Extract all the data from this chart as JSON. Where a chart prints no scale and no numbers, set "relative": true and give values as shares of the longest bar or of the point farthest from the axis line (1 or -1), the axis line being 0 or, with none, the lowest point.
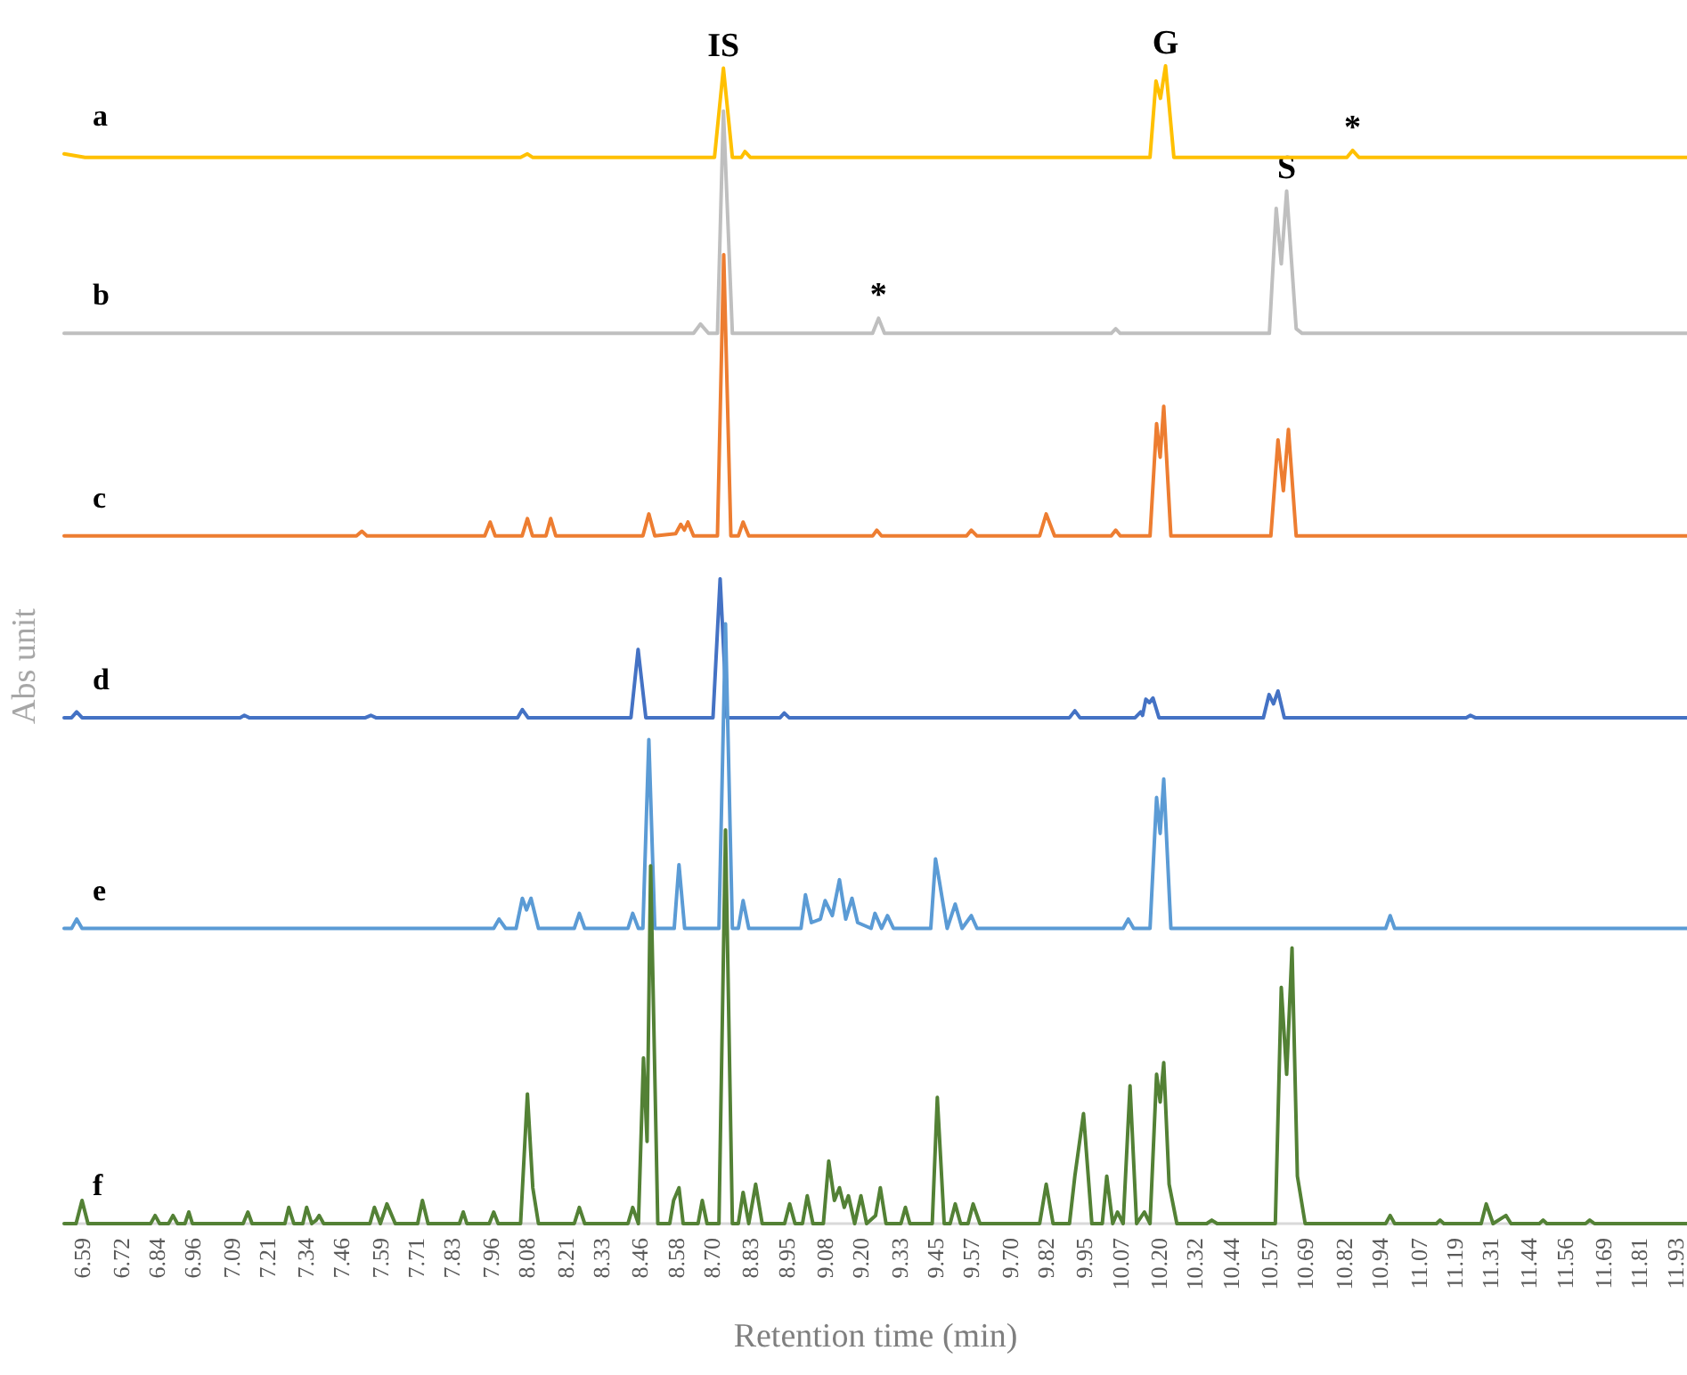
{
  "chart_data": {
    "type": "line",
    "relative": true,
    "xlim": [
      6.53,
      11.97
    ],
    "xlabel": "Retention time (min)",
    "ylabel": "Abs unit",
    "xticks": [
      6.59,
      6.72,
      6.84,
      6.96,
      7.09,
      7.21,
      7.34,
      7.46,
      7.59,
      7.71,
      7.83,
      7.96,
      8.08,
      8.21,
      8.33,
      8.46,
      8.58,
      {
        "value": 8.7,
        "label": "8.70"
      },
      8.83,
      8.95,
      9.08,
      {
        "value": 9.2,
        "label": "9.20"
      },
      9.33,
      9.45,
      9.57,
      {
        "value": 9.7,
        "label": "9.70"
      },
      9.82,
      9.95,
      10.07,
      {
        "value": 10.2,
        "label": "10.20"
      },
      10.32,
      10.44,
      10.57,
      10.69,
      10.82,
      10.94,
      11.07,
      11.19,
      11.31,
      11.44,
      11.56,
      11.69,
      11.81,
      11.93
    ],
    "annotations": [
      {
        "text": "IS",
        "x": 8.74,
        "y": 0.998
      },
      {
        "text": "G",
        "x": 10.222,
        "y": 1.0
      },
      {
        "text": "*",
        "x": 10.849,
        "y": 0.927
      },
      {
        "text": "*",
        "x": 9.26,
        "y": 0.782
      },
      {
        "text": "S",
        "x": 10.628,
        "y": 0.892
      }
    ],
    "series": [
      {
        "name": "a",
        "color": "#ffc000",
        "x": [
          6.53,
          6.6,
          8.06,
          8.083,
          8.1,
          8.71,
          8.74,
          8.77,
          8.8,
          8.812,
          8.83,
          10.17,
          10.19,
          10.205,
          10.222,
          10.25,
          10.83,
          10.849,
          10.87,
          11.97
        ],
        "values": [
          0.924,
          0.921,
          0.921,
          0.924,
          0.921,
          0.921,
          0.998,
          0.921,
          0.921,
          0.926,
          0.921,
          0.921,
          0.987,
          0.972,
          1.0,
          0.921,
          0.921,
          0.927,
          0.921,
          0.921
        ]
      },
      {
        "name": "b",
        "color": "#bfbfbf",
        "x": [
          6.53,
          8.64,
          8.663,
          8.69,
          8.72,
          8.74,
          8.77,
          9.24,
          9.26,
          9.28,
          10.04,
          10.055,
          10.07,
          10.57,
          10.593,
          10.61,
          10.628,
          10.66,
          10.68,
          11.97
        ],
        "values": [
          0.769,
          0.769,
          0.777,
          0.769,
          0.769,
          0.961,
          0.769,
          0.769,
          0.782,
          0.769,
          0.769,
          0.773,
          0.769,
          0.769,
          0.877,
          0.829,
          0.892,
          0.773,
          0.769,
          0.769
        ]
      },
      {
        "name": "c",
        "color": "#ed7d31",
        "x": [
          6.53,
          7.51,
          7.528,
          7.545,
          7.94,
          7.958,
          7.975,
          8.065,
          8.083,
          8.1,
          8.145,
          8.161,
          8.178,
          8.47,
          8.49,
          8.51,
          8.58,
          8.597,
          8.609,
          8.621,
          8.64,
          8.72,
          8.741,
          8.765,
          8.79,
          8.806,
          8.825,
          9.24,
          9.254,
          9.27,
          9.555,
          9.571,
          9.59,
          9.8,
          9.822,
          9.85,
          10.04,
          10.055,
          10.07,
          10.17,
          10.192,
          10.204,
          10.216,
          10.24,
          10.575,
          10.599,
          10.617,
          10.634,
          10.66,
          11.97
        ],
        "values": [
          0.594,
          0.594,
          0.598,
          0.594,
          0.594,
          0.606,
          0.594,
          0.594,
          0.609,
          0.594,
          0.594,
          0.609,
          0.594,
          0.594,
          0.613,
          0.594,
          0.596,
          0.604,
          0.599,
          0.606,
          0.594,
          0.594,
          0.837,
          0.594,
          0.594,
          0.606,
          0.594,
          0.594,
          0.599,
          0.594,
          0.594,
          0.599,
          0.594,
          0.594,
          0.613,
          0.594,
          0.594,
          0.599,
          0.594,
          0.594,
          0.691,
          0.662,
          0.706,
          0.594,
          0.594,
          0.677,
          0.633,
          0.686,
          0.594,
          0.594
        ]
      },
      {
        "name": "d",
        "color": "#4472c4",
        "x": [
          6.53,
          6.555,
          6.572,
          6.59,
          7.12,
          7.134,
          7.15,
          7.54,
          7.558,
          7.575,
          8.05,
          8.066,
          8.085,
          8.43,
          8.454,
          8.48,
          8.705,
          8.729,
          8.752,
          8.93,
          8.944,
          8.96,
          9.9,
          9.918,
          9.935,
          10.12,
          10.139,
          10.145,
          10.156,
          10.168,
          10.18,
          10.2,
          10.55,
          10.569,
          10.584,
          10.599,
          10.62,
          11.23,
          11.244,
          11.26,
          11.97
        ],
        "values": [
          0.437,
          0.437,
          0.442,
          0.437,
          0.437,
          0.439,
          0.437,
          0.437,
          0.439,
          0.437,
          0.437,
          0.444,
          0.437,
          0.437,
          0.496,
          0.437,
          0.437,
          0.557,
          0.437,
          0.437,
          0.441,
          0.437,
          0.437,
          0.443,
          0.437,
          0.437,
          0.442,
          0.439,
          0.453,
          0.45,
          0.454,
          0.437,
          0.437,
          0.457,
          0.449,
          0.46,
          0.437,
          0.437,
          0.439,
          0.437,
          0.437
        ]
      },
      {
        "name": "e",
        "color": "#5b9bd5",
        "x": [
          6.53,
          6.555,
          6.572,
          6.59,
          7.97,
          7.988,
          8.01,
          8.045,
          8.066,
          8.08,
          8.095,
          8.12,
          8.24,
          8.257,
          8.275,
          8.42,
          8.436,
          8.455,
          8.47,
          8.49,
          8.51,
          8.575,
          8.591,
          8.61,
          8.725,
          8.747,
          8.77,
          8.79,
          8.806,
          8.825,
          9.0,
          9.015,
          9.035,
          9.065,
          9.081,
          9.105,
          9.129,
          9.15,
          9.171,
          9.19,
          9.235,
          9.248,
          9.27,
          9.29,
          9.31,
          9.435,
          9.451,
          9.463,
          9.49,
          9.517,
          9.54,
          9.571,
          9.59,
          10.08,
          10.097,
          10.115,
          10.17,
          10.192,
          10.204,
          10.216,
          10.24,
          10.96,
          10.975,
          10.99,
          11.97
        ],
        "values": [
          0.255,
          0.255,
          0.263,
          0.255,
          0.255,
          0.263,
          0.255,
          0.255,
          0.281,
          0.271,
          0.281,
          0.255,
          0.255,
          0.268,
          0.255,
          0.255,
          0.268,
          0.255,
          0.255,
          0.418,
          0.255,
          0.255,
          0.31,
          0.255,
          0.255,
          0.518,
          0.255,
          0.255,
          0.279,
          0.255,
          0.255,
          0.284,
          0.26,
          0.263,
          0.279,
          0.266,
          0.297,
          0.263,
          0.281,
          0.26,
          0.255,
          0.268,
          0.255,
          0.266,
          0.255,
          0.255,
          0.315,
          0.297,
          0.255,
          0.276,
          0.255,
          0.266,
          0.255,
          0.255,
          0.263,
          0.255,
          0.255,
          0.368,
          0.337,
          0.384,
          0.255,
          0.255,
          0.266,
          0.255,
          0.255
        ]
      },
      {
        "name": "f",
        "color": "#538135",
        "x": [
          6.53,
          6.57,
          6.59,
          6.61,
          6.82,
          6.835,
          6.85,
          6.88,
          6.895,
          6.91,
          6.935,
          6.948,
          6.96,
          7.13,
          7.146,
          7.16,
          7.27,
          7.283,
          7.3,
          7.33,
          7.343,
          7.36,
          7.375,
          7.385,
          7.4,
          7.555,
          7.57,
          7.59,
          7.612,
          7.64,
          7.715,
          7.731,
          7.75,
          7.855,
          7.868,
          7.88,
          7.955,
          7.97,
          7.985,
          8.06,
          8.083,
          8.101,
          8.12,
          8.24,
          8.257,
          8.275,
          8.42,
          8.436,
          8.455,
          8.472,
          8.484,
          8.496,
          8.52,
          8.56,
          8.573,
          8.591,
          8.605,
          8.655,
          8.669,
          8.685,
          8.725,
          8.747,
          8.77,
          8.79,
          8.806,
          8.825,
          8.848,
          8.87,
          8.945,
          8.962,
          8.98,
          9.005,
          9.021,
          9.04,
          9.075,
          9.093,
          9.112,
          9.129,
          9.145,
          9.159,
          9.18,
          9.201,
          9.22,
          9.25,
          9.266,
          9.285,
          9.335,
          9.35,
          9.365,
          9.44,
          9.457,
          9.48,
          9.5,
          9.517,
          9.535,
          9.56,
          9.577,
          9.6,
          9.8,
          9.822,
          9.845,
          9.9,
          9.918,
          9.947,
          9.975,
          10.01,
          10.025,
          10.045,
          10.061,
          10.08,
          10.103,
          10.125,
          10.151,
          10.17,
          10.192,
          10.204,
          10.216,
          10.234,
          10.26,
          10.36,
          10.377,
          10.395,
          10.59,
          10.61,
          10.628,
          10.646,
          10.664,
          10.69,
          10.96,
          10.975,
          10.99,
          11.13,
          11.142,
          11.155,
          11.28,
          11.297,
          11.32,
          11.363,
          11.38,
          11.475,
          11.488,
          11.5,
          11.63,
          11.644,
          11.66,
          11.97
        ],
        "values": [
          0,
          0,
          0.02,
          0,
          0,
          0.007,
          0,
          0,
          0.007,
          0,
          0,
          0.01,
          0,
          0,
          0.01,
          0,
          0,
          0.014,
          0,
          0,
          0.014,
          0,
          0.003,
          0.007,
          0,
          0,
          0.014,
          0,
          0.017,
          0,
          0,
          0.02,
          0,
          0,
          0.01,
          0,
          0,
          0.01,
          0,
          0,
          0.112,
          0.031,
          0,
          0,
          0.014,
          0,
          0,
          0.014,
          0,
          0.143,
          0.071,
          0.309,
          0,
          0,
          0.02,
          0.031,
          0,
          0,
          0.02,
          0,
          0,
          0.34,
          0,
          0,
          0.027,
          0,
          0.034,
          0,
          0,
          0.017,
          0,
          0,
          0.024,
          0,
          0,
          0.054,
          0.02,
          0.031,
          0.014,
          0.024,
          0,
          0.024,
          0,
          0.007,
          0.031,
          0,
          0,
          0.014,
          0,
          0,
          0.109,
          0,
          0,
          0.017,
          0,
          0,
          0.017,
          0,
          0,
          0.034,
          0,
          0,
          0.041,
          0.095,
          0,
          0,
          0.041,
          0,
          0.01,
          0,
          0.119,
          0,
          0.01,
          0,
          0.129,
          0.105,
          0.139,
          0.034,
          0,
          0,
          0.003,
          0,
          0,
          0.204,
          0.129,
          0.238,
          0.041,
          0,
          0,
          0.007,
          0,
          0,
          0.003,
          0,
          0,
          0.017,
          0,
          0.007,
          0,
          0,
          0.003,
          0,
          0,
          0.003,
          0,
          0
        ]
      }
    ]
  }
}
